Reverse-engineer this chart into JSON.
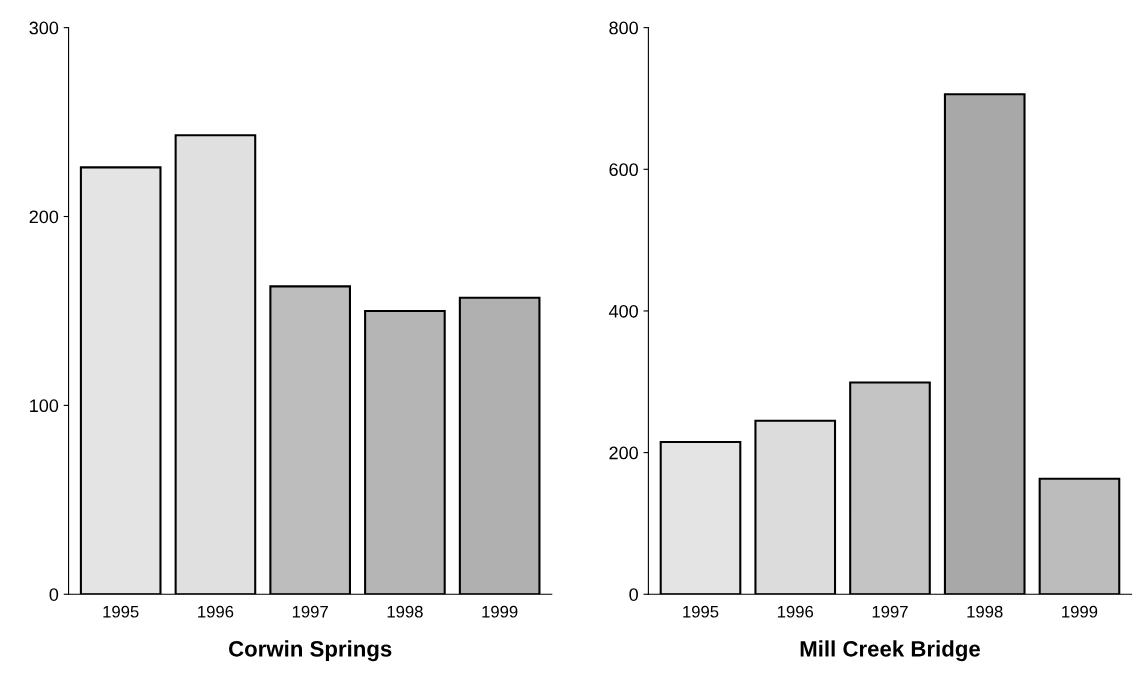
{
  "chart_data": [
    {
      "type": "bar",
      "xlabel": "Corwin Springs",
      "categories": [
        "1995",
        "1996",
        "1997",
        "1998",
        "1999"
      ],
      "values": [
        226,
        243,
        163,
        150,
        157
      ],
      "colors": [
        "#e4e4e4",
        "#e0e0e0",
        "#bdbdbd",
        "#b5b5b5",
        "#b0b0b0"
      ],
      "ylim": [
        0,
        300
      ],
      "yticks": [
        0,
        100,
        200,
        300
      ],
      "grid": false
    },
    {
      "type": "bar",
      "xlabel": "Mill Creek Bridge",
      "categories": [
        "1995",
        "1996",
        "1997",
        "1998",
        "1999"
      ],
      "values": [
        215,
        245,
        299,
        706,
        163
      ],
      "colors": [
        "#e4e4e4",
        "#dcdcdc",
        "#c4c4c4",
        "#a8a8a8",
        "#bcbcbc"
      ],
      "ylim": [
        0,
        800
      ],
      "yticks": [
        0,
        200,
        400,
        600,
        800
      ],
      "grid": false
    }
  ]
}
